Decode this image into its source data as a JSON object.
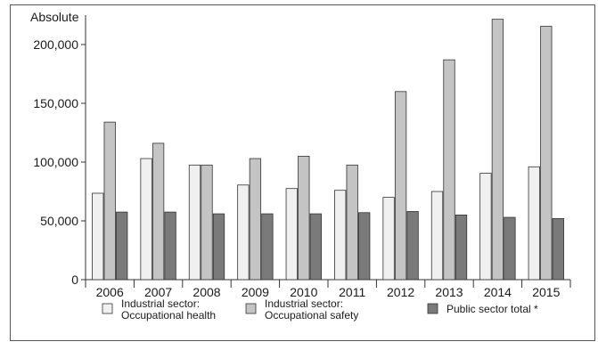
{
  "chart_data": {
    "type": "bar",
    "ylabel": "Absolute",
    "categories": [
      "2006",
      "2007",
      "2008",
      "2009",
      "2010",
      "2011",
      "2012",
      "2013",
      "2014",
      "2015"
    ],
    "series": [
      {
        "name_lines": [
          "Industrial sector:",
          "Occupational health"
        ],
        "color": "#f0f0f0",
        "values": [
          73500,
          103000,
          97500,
          80500,
          77500,
          76000,
          70000,
          75000,
          90500,
          96000
        ]
      },
      {
        "name_lines": [
          "Industrial sector:",
          "Occupational safety"
        ],
        "color": "#c4c4c4",
        "values": [
          134000,
          116000,
          97500,
          103000,
          105000,
          97500,
          160000,
          187000,
          221500,
          215500
        ]
      },
      {
        "name_lines": [
          "Public sector total *"
        ],
        "color": "#7a7a7a",
        "values": [
          57500,
          57500,
          56000,
          56000,
          56000,
          57000,
          58000,
          55000,
          53000,
          52000
        ]
      }
    ],
    "ylim": [
      0,
      225000
    ],
    "yticks": [
      0,
      50000,
      100000,
      150000,
      200000
    ],
    "ytick_labels": [
      "0",
      "50,000",
      "100,000",
      "150,000",
      "200,000"
    ],
    "grid": false,
    "legend_position": "bottom"
  }
}
